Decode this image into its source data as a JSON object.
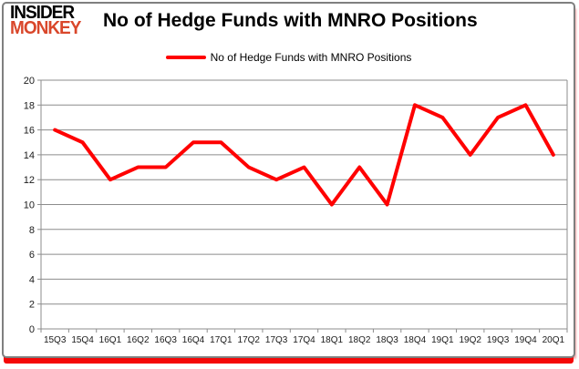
{
  "header": {
    "logo_line1": "INSIDER",
    "logo_line2": "MONKEY",
    "title": "No of Hedge Funds with MNRO Positions"
  },
  "legend": {
    "label": "No of Hedge Funds with MNRO Positions"
  },
  "colors": {
    "series_red": "#FF0000",
    "logo_red": "#D9472B",
    "grid": "#8C8C8C",
    "card_border": "#7F7F7F",
    "axis_text": "#1A1A1A",
    "bottom_bar_red": "#F50707"
  },
  "chart_data": {
    "type": "line",
    "title": "No of Hedge Funds with MNRO Positions",
    "categories": [
      "15Q3",
      "15Q4",
      "16Q1",
      "16Q2",
      "16Q3",
      "16Q4",
      "17Q1",
      "17Q2",
      "17Q3",
      "17Q4",
      "18Q1",
      "18Q2",
      "18Q3",
      "18Q4",
      "19Q1",
      "19Q2",
      "19Q3",
      "19Q4",
      "20Q1"
    ],
    "series": [
      {
        "name": "No of Hedge Funds with MNRO Positions",
        "color": "#FF0000",
        "values": [
          16,
          15,
          12,
          13,
          13,
          15,
          15,
          13,
          12,
          13,
          10,
          13,
          10,
          18,
          17,
          14,
          17,
          18,
          14
        ]
      }
    ],
    "ylim": [
      0,
      20
    ],
    "ytick_step": 2,
    "yticks": [
      0,
      2,
      4,
      6,
      8,
      10,
      12,
      14,
      16,
      18,
      20
    ],
    "grid": true,
    "legend_position": "top",
    "xlabel": "",
    "ylabel": ""
  }
}
